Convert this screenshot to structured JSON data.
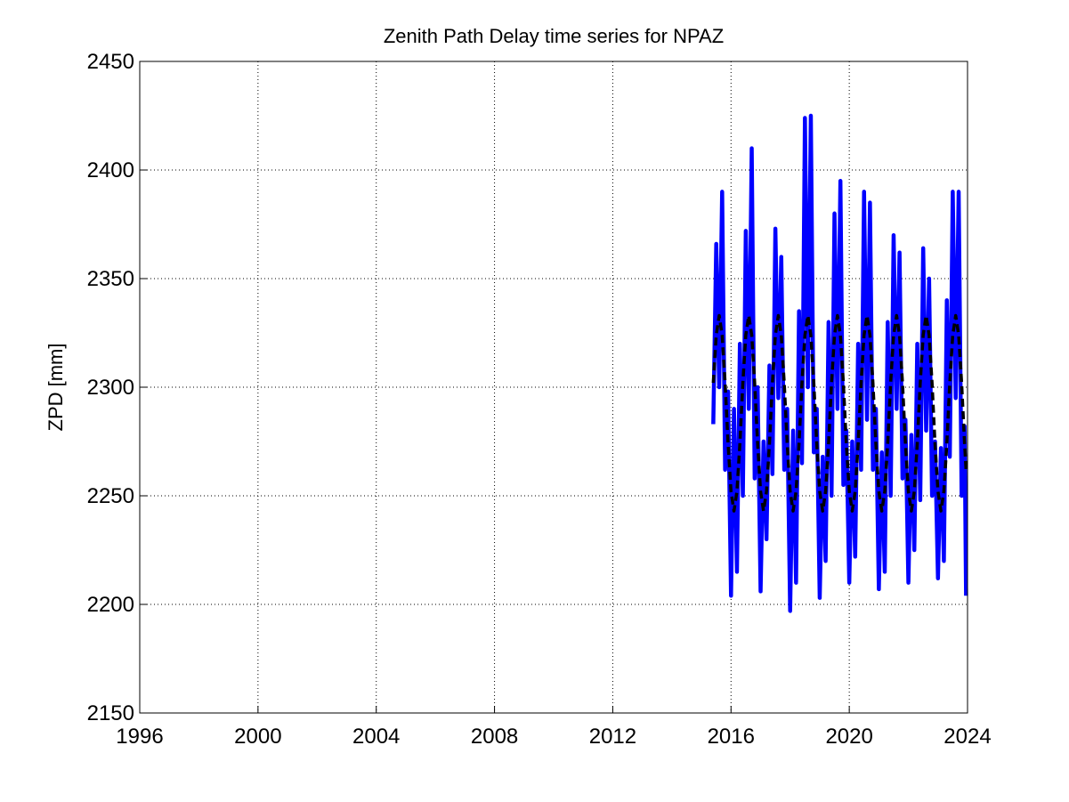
{
  "chart_data": {
    "type": "line",
    "title": "Zenith Path Delay time series for NPAZ",
    "ylabel": "ZPD [mm]",
    "x": [
      2015.4,
      2015.5,
      2015.6,
      2015.7,
      2015.8,
      2015.9,
      2016.0,
      2016.1,
      2016.2,
      2016.3,
      2016.4,
      2016.5,
      2016.6,
      2016.7,
      2016.8,
      2016.9,
      2017.0,
      2017.1,
      2017.2,
      2017.3,
      2017.4,
      2017.5,
      2017.6,
      2017.7,
      2017.8,
      2017.9,
      2018.0,
      2018.1,
      2018.2,
      2018.3,
      2018.4,
      2018.5,
      2018.6,
      2018.7,
      2018.8,
      2018.9,
      2019.0,
      2019.1,
      2019.2,
      2019.3,
      2019.4,
      2019.5,
      2019.6,
      2019.7,
      2019.8,
      2019.9,
      2020.0,
      2020.1,
      2020.2,
      2020.3,
      2020.4,
      2020.5,
      2020.6,
      2020.7,
      2020.8,
      2020.9,
      2021.0,
      2021.1,
      2021.2,
      2021.3,
      2021.4,
      2021.5,
      2021.6,
      2021.7,
      2021.8,
      2021.9,
      2022.0,
      2022.1,
      2022.2,
      2022.3,
      2022.4,
      2022.5,
      2022.6,
      2022.7,
      2022.8,
      2022.9,
      2023.0,
      2023.1,
      2023.2,
      2023.3,
      2023.4,
      2023.5,
      2023.6,
      2023.7,
      2023.8,
      2023.9,
      2023.95
    ],
    "series": [
      {
        "color": "#0000ff",
        "style": "solid",
        "values": [
          2283,
          2366,
          2300,
          2390,
          2262,
          2298,
          2204,
          2290,
          2215,
          2320,
          2250,
          2372,
          2290,
          2410,
          2258,
          2300,
          2206,
          2275,
          2230,
          2310,
          2260,
          2373,
          2295,
          2360,
          2262,
          2290,
          2197,
          2280,
          2210,
          2335,
          2265,
          2424,
          2300,
          2425,
          2270,
          2290,
          2203,
          2268,
          2220,
          2330,
          2250,
          2380,
          2290,
          2395,
          2255,
          2280,
          2210,
          2275,
          2222,
          2320,
          2262,
          2390,
          2285,
          2385,
          2262,
          2290,
          2207,
          2270,
          2215,
          2330,
          2250,
          2370,
          2290,
          2362,
          2258,
          2285,
          2210,
          2278,
          2225,
          2320,
          2248,
          2364,
          2280,
          2350,
          2250,
          2275,
          2212,
          2272,
          2220,
          2340,
          2268,
          2390,
          2295,
          2390,
          2250,
          2282,
          2204
        ]
      },
      {
        "color": "#000000",
        "style": "dashed",
        "values": [
          2302,
          2324,
          2333,
          2324,
          2302,
          2274,
          2252,
          2243,
          2252,
          2274,
          2302,
          2324,
          2333,
          2324,
          2302,
          2274,
          2252,
          2243,
          2252,
          2274,
          2302,
          2324,
          2333,
          2324,
          2302,
          2274,
          2252,
          2243,
          2252,
          2274,
          2302,
          2324,
          2333,
          2324,
          2302,
          2274,
          2252,
          2243,
          2252,
          2274,
          2302,
          2324,
          2333,
          2324,
          2302,
          2274,
          2252,
          2243,
          2252,
          2274,
          2302,
          2324,
          2333,
          2324,
          2302,
          2274,
          2252,
          2243,
          2252,
          2274,
          2302,
          2324,
          2333,
          2324,
          2302,
          2274,
          2252,
          2243,
          2252,
          2274,
          2302,
          2324,
          2333,
          2324,
          2302,
          2274,
          2252,
          2243,
          2252,
          2274,
          2302,
          2324,
          2333,
          2324,
          2302,
          2274,
          2262
        ]
      }
    ],
    "xlim": [
      1996,
      2024
    ],
    "xticks": [
      1996,
      2000,
      2004,
      2008,
      2012,
      2016,
      2020,
      2024
    ],
    "ylim": [
      2150,
      2450
    ],
    "yticks": [
      2150,
      2200,
      2250,
      2300,
      2350,
      2400,
      2450
    ],
    "grid": true
  }
}
